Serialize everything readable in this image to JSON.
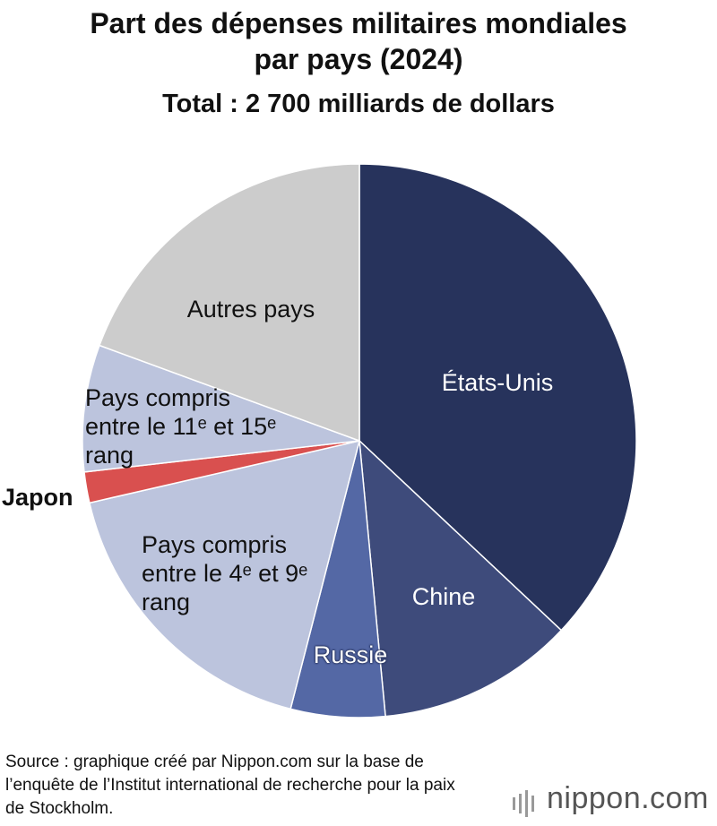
{
  "chart_data": {
    "type": "pie",
    "title": "Part des dépenses militaires mondiales par pays (2024)",
    "subtitle": "Total : 2 700 milliards de dollars",
    "categories": [
      "États-Unis",
      "Chine",
      "Russie",
      "Pays compris entre le 4ᵉ et 9ᵉ rang",
      "Japon",
      "Pays compris entre le 11ᵉ et 15ᵉ rang",
      "Autres pays"
    ],
    "values": [
      37,
      11.5,
      5.5,
      17.4,
      1.8,
      7.4,
      19.4
    ],
    "colors": [
      "#27335c",
      "#3e4b7b",
      "#5468a5",
      "#bcc4dd",
      "#d9504f",
      "#bcc4dd",
      "#cccccc"
    ],
    "source": "Source : graphique créé par Nippon.com sur la base de l’enquête de l’Institut international de recherche pour la paix de Stockholm.",
    "brand": "nippon.com"
  }
}
